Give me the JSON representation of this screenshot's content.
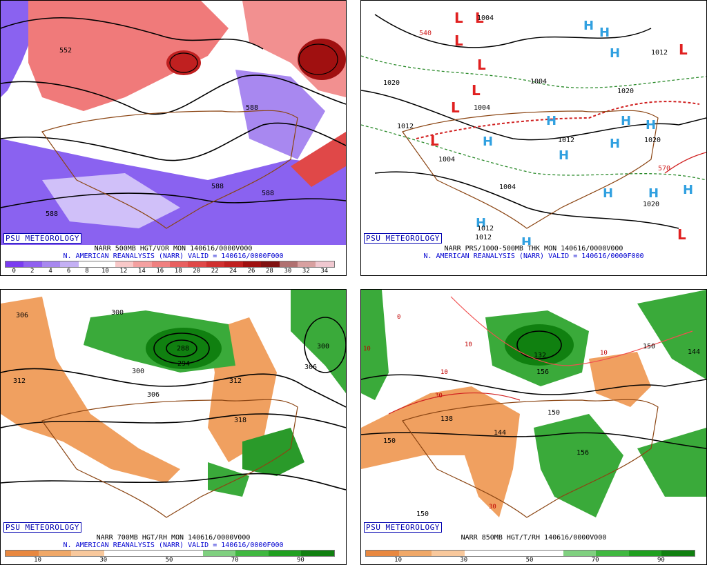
{
  "brand": "PSU METEOROLOGY",
  "panels": [
    {
      "caption": "NARR 500MB HGT/VOR MON 140616/0000V000",
      "valid": "N. AMERICAN REANALYSIS (NARR) VALID = 140616/0000F000",
      "colorbar": {
        "ticks": [
          "0",
          "2",
          "4",
          "6",
          "8",
          "10",
          "12",
          "14",
          "16",
          "18",
          "20",
          "22",
          "24",
          "26",
          "28",
          "30",
          "32",
          "34"
        ],
        "colors": [
          "#7a3cf0",
          "#9060f0",
          "#a888f0",
          "#c4b0f4",
          "#ffffff",
          "#ffffff",
          "#f8c8c8",
          "#f4a0a0",
          "#f08080",
          "#e86060",
          "#e04848",
          "#d03030",
          "#c02020",
          "#a01010",
          "#801010",
          "#b07070",
          "#d8a0a0",
          "#f0c8d0"
        ]
      },
      "labels": [
        "552",
        "588",
        "588",
        "588",
        "588"
      ]
    },
    {
      "caption": "NARR PRS/1000-500MB THK MON 140616/0000V000",
      "valid": "N. AMERICAN REANALYSIS (NARR) VALID = 140616/0000F000",
      "labels": [
        "1004",
        "1020",
        "1012",
        "1004",
        "1004",
        "1004",
        "1012",
        "1020",
        "1020",
        "1012",
        "1020",
        "1012",
        "1012",
        "1004",
        "540",
        "570"
      ]
    },
    {
      "caption": "NARR 700MB HGT/RH MON 140616/0000V000",
      "valid": "N. AMERICAN REANALYSIS (NARR) VALID = 140616/0000F000",
      "colorbar": {
        "ticks": [
          "10",
          "30",
          "50",
          "70",
          "90"
        ],
        "colors": [
          "#e88840",
          "#f0a868",
          "#f8c89c",
          "#ffffff",
          "#ffffff",
          "#ffffff",
          "#80d080",
          "#40b840",
          "#20a020",
          "#108010"
        ]
      },
      "labels": [
        "306",
        "300",
        "312",
        "300",
        "306",
        "288",
        "294",
        "300",
        "306",
        "312",
        "318"
      ]
    },
    {
      "caption": "NARR 850MB HGT/T/RH 140616/0000V000",
      "colorbar": {
        "ticks": [
          "10",
          "30",
          "50",
          "70",
          "90"
        ],
        "colors": [
          "#e88840",
          "#f0a868",
          "#f8c89c",
          "#ffffff",
          "#ffffff",
          "#ffffff",
          "#80d080",
          "#40b840",
          "#20a020",
          "#108010"
        ]
      },
      "labels": [
        "0",
        "10",
        "10",
        "10",
        "10",
        "30",
        "30",
        "138",
        "144",
        "150",
        "150",
        "150",
        "156",
        "156",
        "144",
        "132",
        "150"
      ]
    }
  ]
}
